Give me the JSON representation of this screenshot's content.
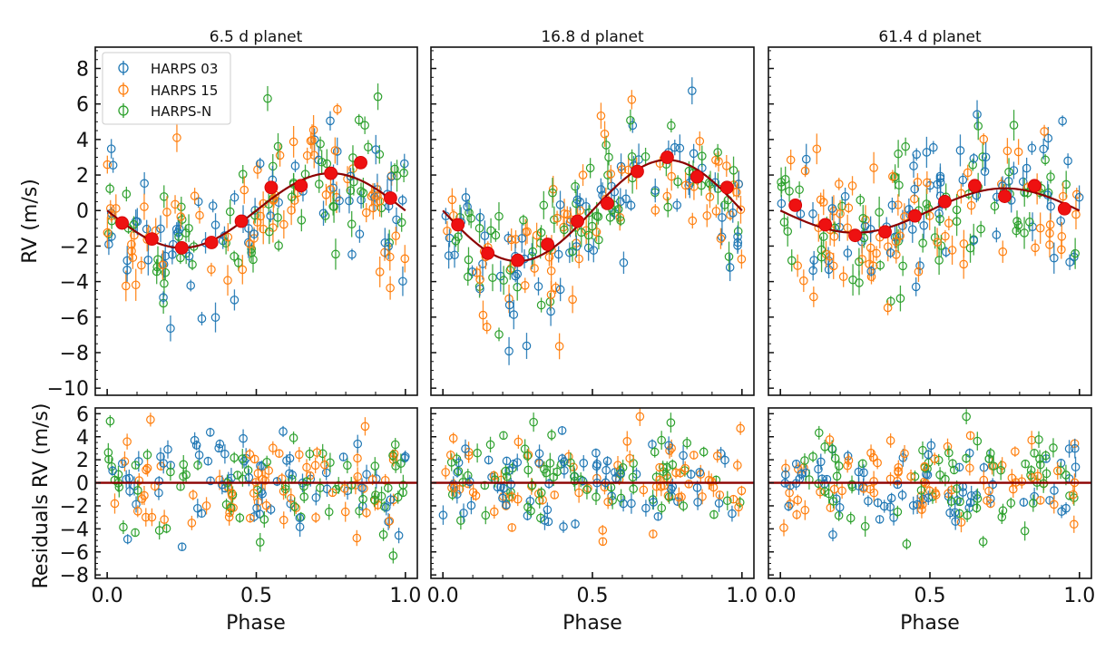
{
  "chart_data": {
    "type": "scatter",
    "layout": "2 rows x 3 columns",
    "legend": {
      "placement": "top-left of first panel",
      "entries": [
        {
          "name": "HARPS 03",
          "color": "#1f77b4"
        },
        {
          "name": "HARPS 15",
          "color": "#ff7f0e"
        },
        {
          "name": "HARPS-N",
          "color": "#2ca02c"
        }
      ]
    },
    "colors": {
      "model": "#8b0000",
      "binned": "#ee1111",
      "axis": "#111111"
    },
    "top_row": {
      "ylabel": "RV (m/s)",
      "ylim": [
        -10.4,
        9.2
      ],
      "yticks": [
        8,
        6,
        4,
        2,
        0,
        -2,
        -4,
        -6,
        -8,
        -10
      ],
      "ytick_labels": [
        "8",
        "6",
        "4",
        "2",
        "0",
        "−2",
        "−4",
        "−6",
        "−8",
        "−10"
      ]
    },
    "bottom_row": {
      "ylabel": "Residuals RV (m/s)",
      "ylim": [
        -8.3,
        6.5
      ],
      "yticks": [
        6,
        4,
        2,
        0,
        -2,
        -4,
        -6,
        -8
      ],
      "ytick_labels": [
        "6",
        "4",
        "2",
        "0",
        "−2",
        "−4",
        "−6",
        "−8"
      ]
    },
    "xlabel": "Phase",
    "xlim": [
      -0.04,
      1.04
    ],
    "xticks": [
      0.0,
      0.5,
      1.0
    ],
    "xtick_labels": [
      "0.0",
      "0.5",
      "1.0"
    ],
    "panels": [
      {
        "title": "6.5 d planet",
        "model_amplitude": 2.1,
        "binned": {
          "phase": [
            0.05,
            0.15,
            0.25,
            0.35,
            0.45,
            0.55,
            0.65,
            0.75,
            0.85,
            0.95
          ],
          "rv": [
            -0.7,
            -1.6,
            -2.1,
            -1.8,
            -0.6,
            1.3,
            1.4,
            2.1,
            2.7,
            0.7
          ]
        },
        "scatter_seed": 11,
        "scatter_spread_rv": 2.0,
        "scatter_spread_res": 2.2
      },
      {
        "title": "16.8 d planet",
        "model_amplitude": 2.85,
        "binned": {
          "phase": [
            0.05,
            0.15,
            0.25,
            0.35,
            0.45,
            0.55,
            0.65,
            0.75,
            0.85,
            0.95
          ],
          "rv": [
            -0.8,
            -2.4,
            -2.8,
            -1.9,
            -0.6,
            0.4,
            2.2,
            3.0,
            1.9,
            1.3
          ]
        },
        "scatter_seed": 29,
        "scatter_spread_rv": 1.9,
        "scatter_spread_res": 2.0
      },
      {
        "title": "61.4 d planet",
        "model_amplitude": 1.25,
        "binned": {
          "phase": [
            0.05,
            0.15,
            0.25,
            0.35,
            0.45,
            0.55,
            0.65,
            0.75,
            0.85,
            0.95
          ],
          "rv": [
            0.3,
            -0.8,
            -1.4,
            -1.2,
            -0.3,
            0.5,
            1.4,
            0.8,
            1.4,
            0.1
          ]
        },
        "scatter_seed": 47,
        "scatter_spread_rv": 2.0,
        "scatter_spread_res": 2.0
      }
    ],
    "scatter_points_per_instrument": 70
  }
}
